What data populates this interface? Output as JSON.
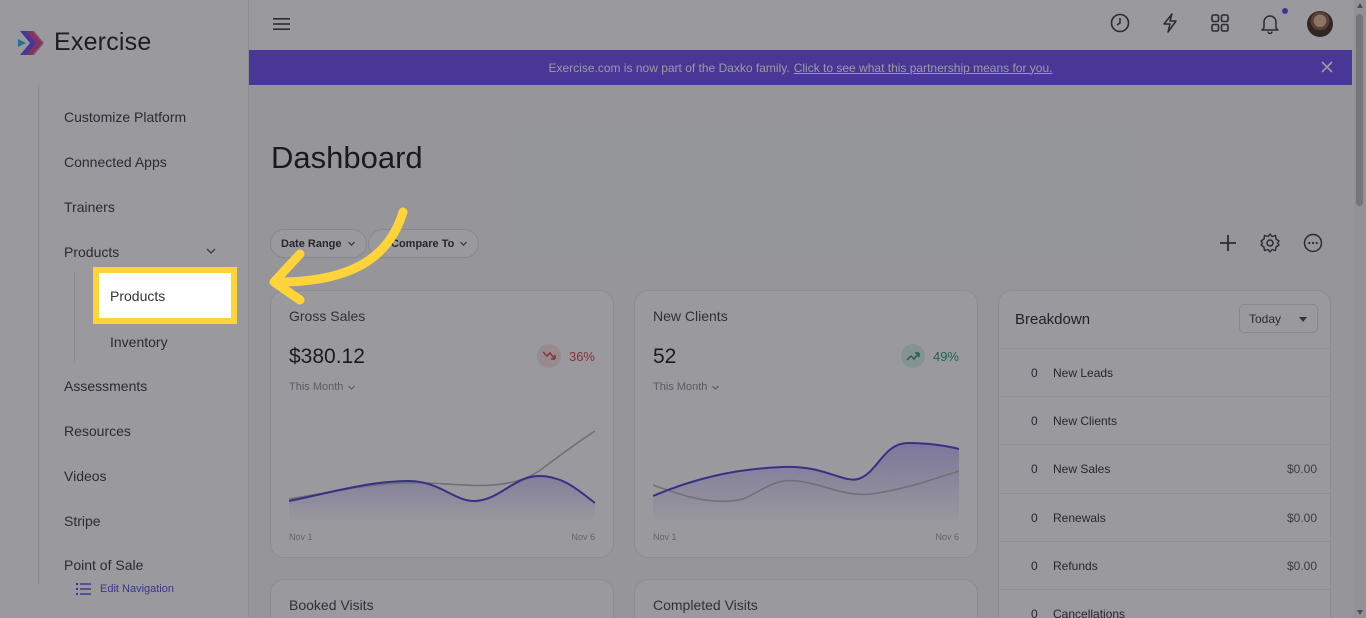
{
  "app": {
    "name": "Exercise"
  },
  "sidebar": {
    "items": [
      {
        "label": "Customize Platform"
      },
      {
        "label": "Connected Apps"
      },
      {
        "label": "Trainers"
      },
      {
        "label": "Products"
      },
      {
        "label": "Assessments"
      },
      {
        "label": "Resources"
      },
      {
        "label": "Videos"
      },
      {
        "label": "Stripe"
      },
      {
        "label": "Point of Sale"
      }
    ],
    "sub_items": [
      {
        "label": "Products"
      },
      {
        "label": "Inventory"
      }
    ],
    "edit_navigation": "Edit Navigation"
  },
  "banner": {
    "text": "Exercise.com is now part of the Daxko family.",
    "link": "Click to see what this partnership means for you."
  },
  "page": {
    "title": "Dashboard"
  },
  "filters": {
    "date_range": "Date Range",
    "compare_to": "Compare To"
  },
  "cards": {
    "gross_sales": {
      "title": "Gross Sales",
      "value": "$380.12",
      "period": "This Month",
      "trend": "36%",
      "trend_color": "#d64545",
      "x_start": "Nov 1",
      "x_end": "Nov 6"
    },
    "new_clients": {
      "title": "New Clients",
      "value": "52",
      "period": "This Month",
      "trend": "49%",
      "trend_color": "#1f9d6b",
      "x_start": "Nov 1",
      "x_end": "Nov 6"
    },
    "booked_visits": {
      "title": "Booked Visits"
    },
    "completed_visits": {
      "title": "Completed Visits"
    }
  },
  "breakdown": {
    "title": "Breakdown",
    "period": "Today",
    "rows": [
      {
        "count": "0",
        "label": "New Leads",
        "amount": ""
      },
      {
        "count": "0",
        "label": "New Clients",
        "amount": ""
      },
      {
        "count": "0",
        "label": "New Sales",
        "amount": "$0.00"
      },
      {
        "count": "0",
        "label": "Renewals",
        "amount": "$0.00"
      },
      {
        "count": "0",
        "label": "Refunds",
        "amount": "$0.00"
      },
      {
        "count": "0",
        "label": "Cancellations",
        "amount": ""
      }
    ]
  },
  "colors": {
    "accent": "#6b4cf0",
    "highlight": "#ffd43b",
    "series_primary": "#4b3fcf",
    "series_compare": "#b3b3b8"
  }
}
